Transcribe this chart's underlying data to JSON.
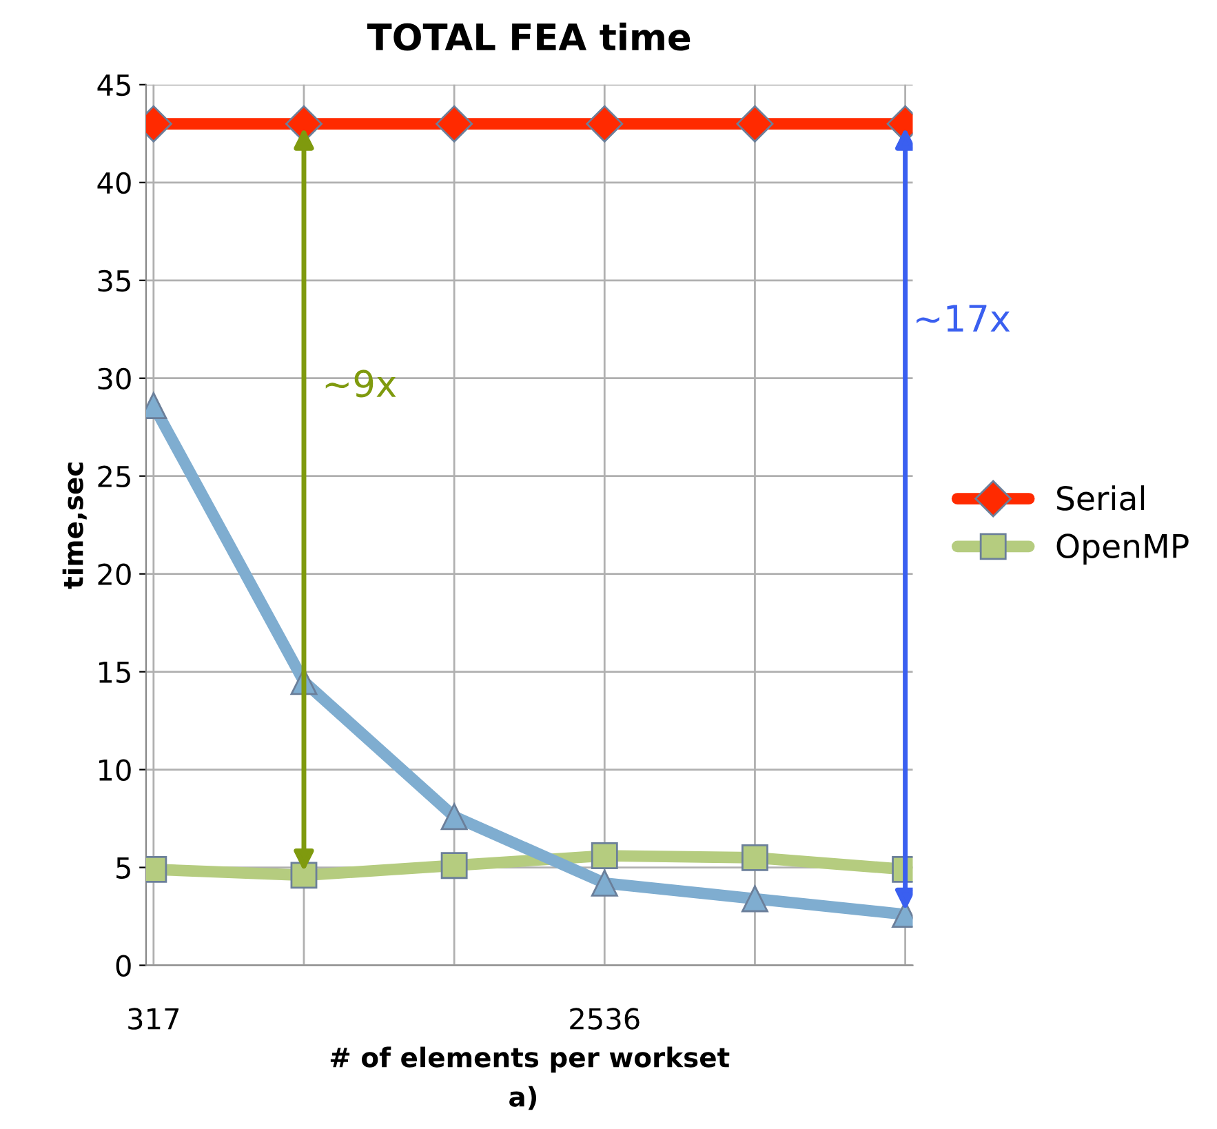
{
  "chart_data": {
    "type": "line",
    "title": "TOTAL FEA time",
    "xlabel": "# of elements per workset",
    "ylabel": "time,sec",
    "categories": [
      "317",
      null,
      null,
      "2536",
      null,
      null
    ],
    "series": [
      {
        "name": "Serial",
        "color": "#ff2a00",
        "marker": "diamond",
        "values": [
          43,
          43,
          43,
          43,
          43,
          43
        ]
      },
      {
        "name": "OpenMP",
        "color": "#b5cc7f",
        "marker": "square",
        "values": [
          4.9,
          4.6,
          5.1,
          5.6,
          5.5,
          4.9
        ]
      },
      {
        "color": "#7fadd0",
        "marker": "triangle",
        "values": [
          28.6,
          14.5,
          7.6,
          4.2,
          3.4,
          2.6
        ]
      }
    ],
    "ylim": [
      0,
      45
    ],
    "yticks": [
      0,
      5,
      10,
      15,
      20,
      25,
      30,
      35,
      40,
      45
    ],
    "grid": true,
    "legend": "right",
    "annotations": [
      "~9x",
      "~17x",
      "a)"
    ]
  }
}
